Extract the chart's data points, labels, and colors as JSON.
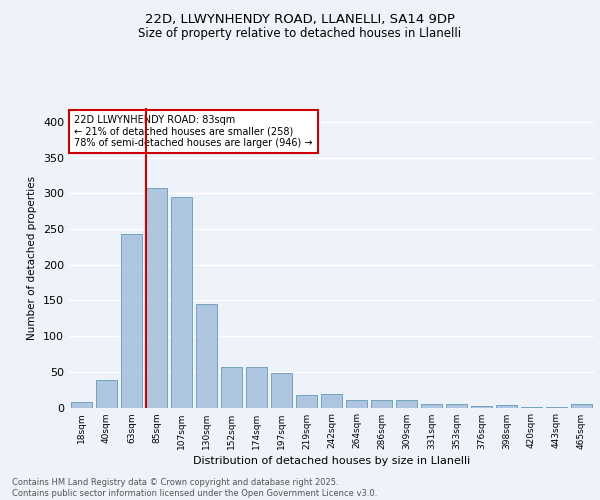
{
  "title1": "22D, LLWYNHENDY ROAD, LLANELLI, SA14 9DP",
  "title2": "Size of property relative to detached houses in Llanelli",
  "xlabel": "Distribution of detached houses by size in Llanelli",
  "ylabel": "Number of detached properties",
  "bar_labels": [
    "18sqm",
    "40sqm",
    "63sqm",
    "85sqm",
    "107sqm",
    "130sqm",
    "152sqm",
    "174sqm",
    "197sqm",
    "219sqm",
    "242sqm",
    "264sqm",
    "286sqm",
    "309sqm",
    "331sqm",
    "353sqm",
    "376sqm",
    "398sqm",
    "420sqm",
    "443sqm",
    "465sqm"
  ],
  "bar_values": [
    8,
    38,
    243,
    308,
    295,
    145,
    57,
    57,
    48,
    18,
    19,
    10,
    11,
    11,
    5,
    5,
    2,
    3,
    1,
    1,
    5
  ],
  "bar_color": "#aec6df",
  "bar_edge_color": "#6699bb",
  "vline_color": "#cc0000",
  "vline_x_index": 3,
  "annotation_text": "22D LLWYNHENDY ROAD: 83sqm\n← 21% of detached houses are smaller (258)\n78% of semi-detached houses are larger (946) →",
  "annotation_box_color": "#ffffff",
  "annotation_border_color": "#cc0000",
  "ylim": [
    0,
    420
  ],
  "yticks": [
    0,
    50,
    100,
    150,
    200,
    250,
    300,
    350,
    400
  ],
  "background_color": "#eef2f9",
  "plot_background": "#eef2f9",
  "footer_text": "Contains HM Land Registry data © Crown copyright and database right 2025.\nContains public sector information licensed under the Open Government Licence v3.0.",
  "grid_color": "#ffffff",
  "title1_fontsize": 9.5,
  "title2_fontsize": 8.5
}
